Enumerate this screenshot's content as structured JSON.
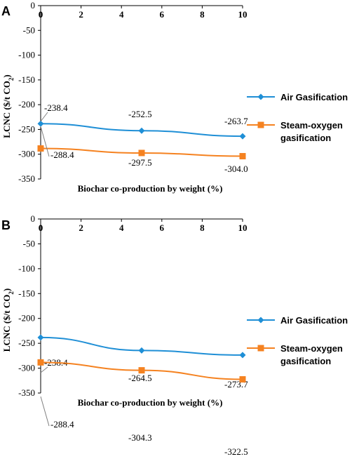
{
  "colors": {
    "air": "#1f8fd6",
    "steam": "#f58220",
    "axis": "#000000",
    "leader": "#808080"
  },
  "chart_data": [
    {
      "panel": "A",
      "type": "line",
      "x": [
        0,
        5,
        10
      ],
      "x_ticks": [
        "0",
        "2",
        "4",
        "6",
        "8",
        "10"
      ],
      "y_ticks": [
        "0",
        "-50",
        "-100",
        "-150",
        "-200",
        "-250",
        "-300",
        "-350"
      ],
      "xlim": [
        0,
        10
      ],
      "ylim": [
        -350,
        0
      ],
      "xlabel": "Biochar co-production by weight (%)",
      "ylabel": "LCNC ($/t CO",
      "ylabel_sub": "2",
      "ylabel_end": ")",
      "series": [
        {
          "key": "air",
          "name": "Air Gasification",
          "name_lines": [
            "Air Gasification"
          ],
          "marker": "diamond",
          "values": [
            -238.4,
            -252.5,
            -263.7
          ],
          "labels": [
            "-238.4",
            "-252.5",
            "-263.7"
          ]
        },
        {
          "key": "steam",
          "name": "Steam-oxygen gasification",
          "name_lines": [
            "Steam-oxygen",
            "gasification"
          ],
          "marker": "square",
          "values": [
            -288.4,
            -297.5,
            -304.0
          ],
          "labels": [
            "-288.4",
            "-297.5",
            "-304.0"
          ]
        }
      ]
    },
    {
      "panel": "B",
      "type": "line",
      "x": [
        0,
        5,
        10
      ],
      "x_ticks": [
        "0",
        "2",
        "4",
        "6",
        "8",
        "10"
      ],
      "y_ticks": [
        "0",
        "-50",
        "-100",
        "-150",
        "-200",
        "-250",
        "-300",
        "-350"
      ],
      "xlim": [
        0,
        10
      ],
      "ylim": [
        -350,
        0
      ],
      "xlabel": "Biochar co-production by weight (%)",
      "ylabel": "LCNC ($/t CO",
      "ylabel_sub": "2",
      "ylabel_end": ")",
      "series": [
        {
          "key": "air",
          "name": "Air Gasification",
          "name_lines": [
            "Air Gasification"
          ],
          "marker": "diamond",
          "values": [
            -238.4,
            -264.5,
            -273.7
          ],
          "labels": [
            "-238.4",
            "-264.5",
            "-273.7"
          ]
        },
        {
          "key": "steam",
          "name": "Steam-oxygen gasification",
          "name_lines": [
            "Steam-oxygen",
            "gasification"
          ],
          "marker": "square",
          "values": [
            -288.4,
            -304.3,
            -322.5
          ],
          "labels": [
            "-288.4",
            "-304.3",
            "-322.5"
          ]
        }
      ]
    }
  ]
}
